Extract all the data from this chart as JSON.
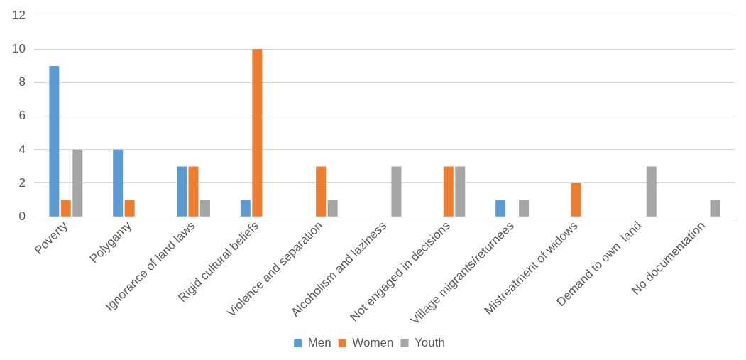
{
  "chart_data": {
    "type": "bar",
    "categories": [
      "Poverty",
      "Polygamy",
      "Ignorance of land laws",
      "Rigid cultural beliefs",
      "Violence and separation",
      "Alcoholism and laziness",
      "Not engaged in decisions",
      "Village migrants/returnees",
      "Mistreatment of widows",
      "Demand to own  land",
      "No documentation"
    ],
    "series": [
      {
        "name": "Men",
        "color": "#5b9bd5",
        "values": [
          9,
          4,
          3,
          1,
          0,
          0,
          0,
          1,
          0,
          0,
          0
        ]
      },
      {
        "name": "Women",
        "color": "#ed7d31",
        "values": [
          1,
          1,
          3,
          10,
          3,
          0,
          3,
          0,
          2,
          0,
          0
        ]
      },
      {
        "name": "Youth",
        "color": "#a5a5a5",
        "values": [
          4,
          0,
          1,
          0,
          1,
          3,
          3,
          1,
          0,
          3,
          1
        ]
      }
    ],
    "ylim": [
      0,
      12
    ],
    "yticks": [
      0,
      2,
      4,
      6,
      8,
      10,
      12
    ],
    "grid": "y",
    "legend": "bottom"
  }
}
